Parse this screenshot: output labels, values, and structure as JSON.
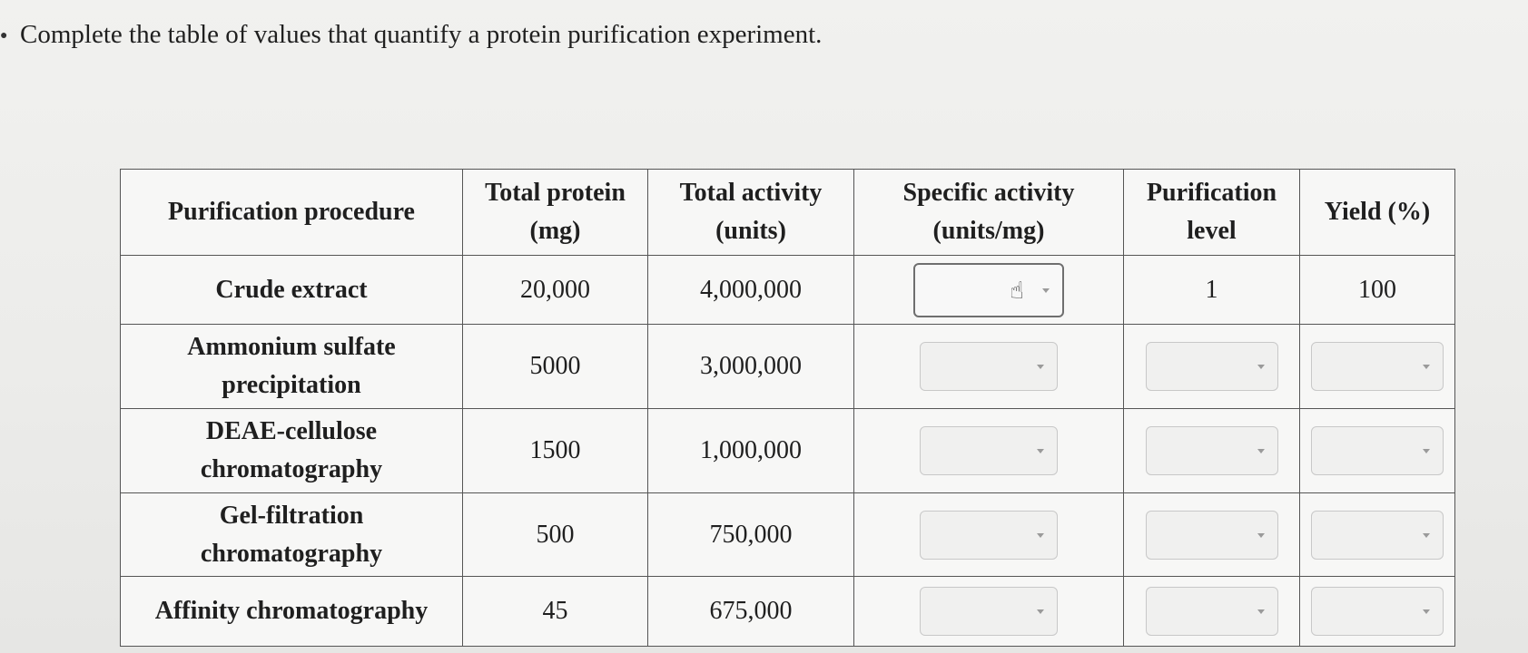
{
  "question": {
    "text": "Complete the table of values that quantify a protein purification experiment."
  },
  "table": {
    "headers": {
      "procedure": "Purification procedure",
      "total_protein_line1": "Total protein",
      "total_protein_line2": "(mg)",
      "total_activity_line1": "Total activity",
      "total_activity_line2": "(units)",
      "specific_activity_line1": "Specific activity",
      "specific_activity_line2": "(units/mg)",
      "purification_line1": "Purification",
      "purification_line2": "level",
      "yield": "Yield (%)"
    },
    "rows": [
      {
        "procedure_line1": "Crude extract",
        "protein": "20,000",
        "activity": "4,000,000",
        "purification": "1",
        "yield": "100"
      },
      {
        "procedure_line1": "Ammonium sulfate",
        "procedure_line2": "precipitation",
        "protein": "5000",
        "activity": "3,000,000"
      },
      {
        "procedure_line1": "DEAE-cellulose",
        "procedure_line2": "chromatography",
        "protein": "1500",
        "activity": "1,000,000"
      },
      {
        "procedure_line1": "Gel-filtration",
        "procedure_line2": "chromatography",
        "protein": "500",
        "activity": "750,000"
      },
      {
        "procedure_line1": "Affinity chromatography",
        "protein": "45",
        "activity": "675,000"
      }
    ]
  },
  "icons": {
    "cursor": "hand-pointer-icon",
    "dropdown": "chevron-down-icon"
  }
}
